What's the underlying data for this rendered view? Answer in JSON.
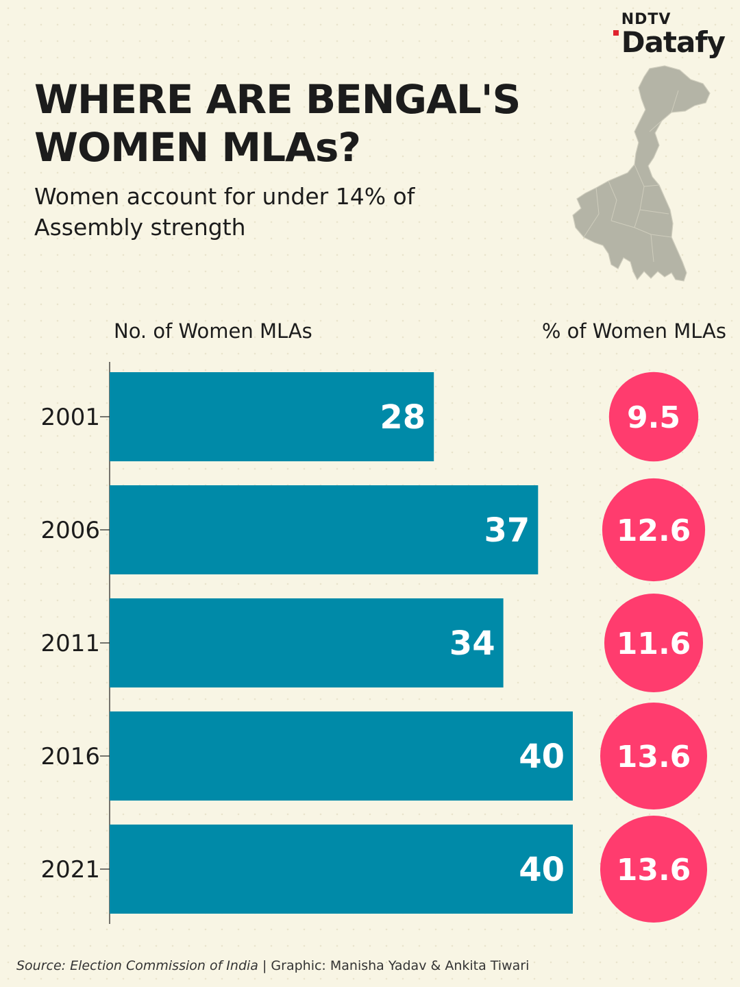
{
  "brand": {
    "top": "NDTV",
    "main": "Datafy",
    "accent": "#e0242f"
  },
  "title": "WHERE ARE BENGAL'S WOMEN MLAs?",
  "subtitle": "Women account for under 14% of Assembly strength",
  "map": {
    "icon": "west-bengal-map-icon",
    "color": "#b4b4a6"
  },
  "column_headers": {
    "left": "No. of Women MLAs",
    "right": "% of Women MLAs"
  },
  "colors": {
    "bar": "#008aa8",
    "circle": "#ff3c6e",
    "label": "#ffffff",
    "background": "#f8f5e4"
  },
  "chart_data": {
    "type": "bar",
    "orientation": "horizontal",
    "title": "WHERE ARE BENGAL'S WOMEN MLAs?",
    "xlabel": "No. of Women MLAs",
    "ylabel": "",
    "xlim": [
      0,
      40
    ],
    "categories": [
      "2001",
      "2006",
      "2011",
      "2016",
      "2021"
    ],
    "series": [
      {
        "name": "No. of Women MLAs",
        "values": [
          28,
          37,
          34,
          40,
          40
        ]
      },
      {
        "name": "% of Women MLAs",
        "values": [
          9.5,
          12.6,
          11.6,
          13.6,
          13.6
        ]
      }
    ]
  },
  "source": {
    "prefix": "Source:",
    "name": "Election Commission of India",
    "credit": "| Graphic: Manisha Yadav & Ankita Tiwari"
  }
}
